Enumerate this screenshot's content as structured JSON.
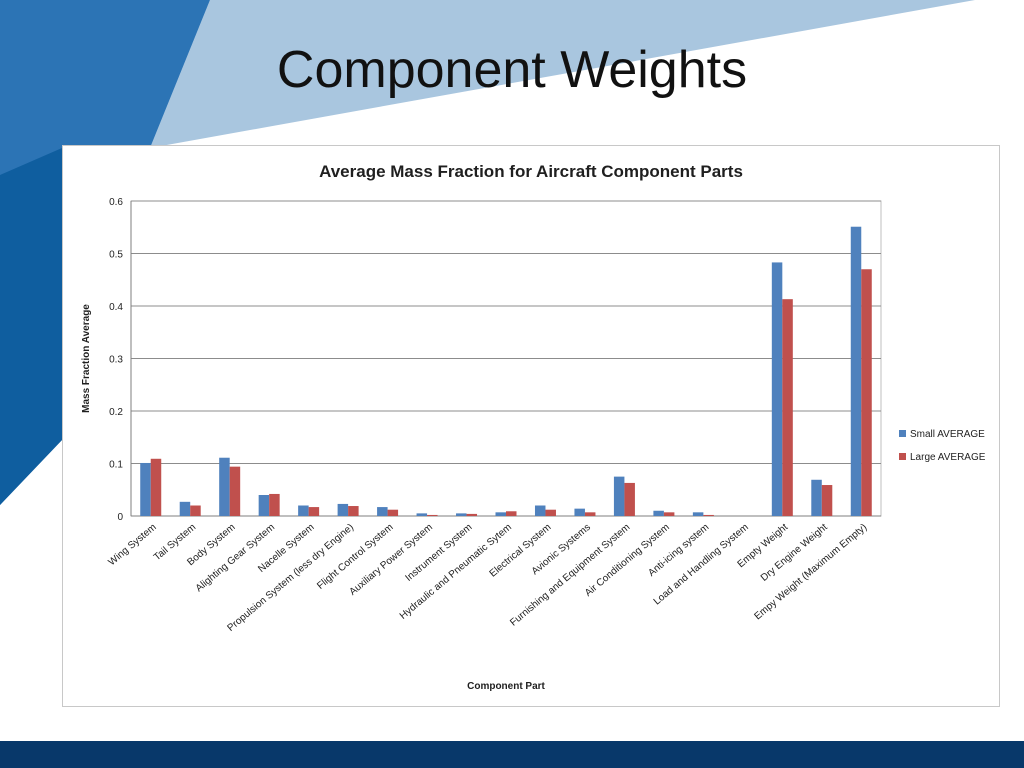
{
  "slide": {
    "title": "Component Weights",
    "colors": {
      "dark_blue": "#0f5e9f",
      "mid_blue": "#2c74b5",
      "light_blue": "#a9c6df",
      "footer": "#08386a"
    }
  },
  "chart_data": {
    "type": "bar",
    "title": "Average Mass Fraction for Aircraft Component Parts",
    "xlabel": "Component Part",
    "ylabel": "Mass Fraction Average",
    "ylim": [
      0,
      0.6
    ],
    "yticks": [
      "0",
      "0.1",
      "0.2",
      "0.3",
      "0.4",
      "0.5",
      "0.6"
    ],
    "grid": true,
    "legend_position": "right",
    "categories": [
      "Wing System",
      "Tail System",
      "Body System",
      "Alighting Gear System",
      "Nacelle System",
      "Propulsion System (less dry Engine)",
      "Flight Control System",
      "Auxiliary Power System",
      "Instrument System",
      "Hydraulic and Pneumatic Sytem",
      "Electrical System",
      "Avionic Systems",
      "Furnishing and Equipment System",
      "Air Conditioning System",
      "Anti-icing system",
      "Load and Handling System",
      "Empty Weight",
      "Dry Engine Weight",
      "Empy Weight (Maximum Empty)"
    ],
    "series": [
      {
        "name": "Small AVERAGE",
        "color": "#4f81bd",
        "values": [
          0.101,
          0.027,
          0.111,
          0.04,
          0.02,
          0.023,
          0.017,
          0.005,
          0.005,
          0.007,
          0.02,
          0.014,
          0.075,
          0.01,
          0.007,
          0.0,
          0.483,
          0.069,
          0.551
        ]
      },
      {
        "name": "Large AVERAGE",
        "color": "#c0504d",
        "values": [
          0.109,
          0.02,
          0.094,
          0.042,
          0.017,
          0.019,
          0.012,
          0.002,
          0.004,
          0.009,
          0.012,
          0.007,
          0.063,
          0.007,
          0.002,
          0.0,
          0.413,
          0.059,
          0.47
        ]
      }
    ]
  }
}
